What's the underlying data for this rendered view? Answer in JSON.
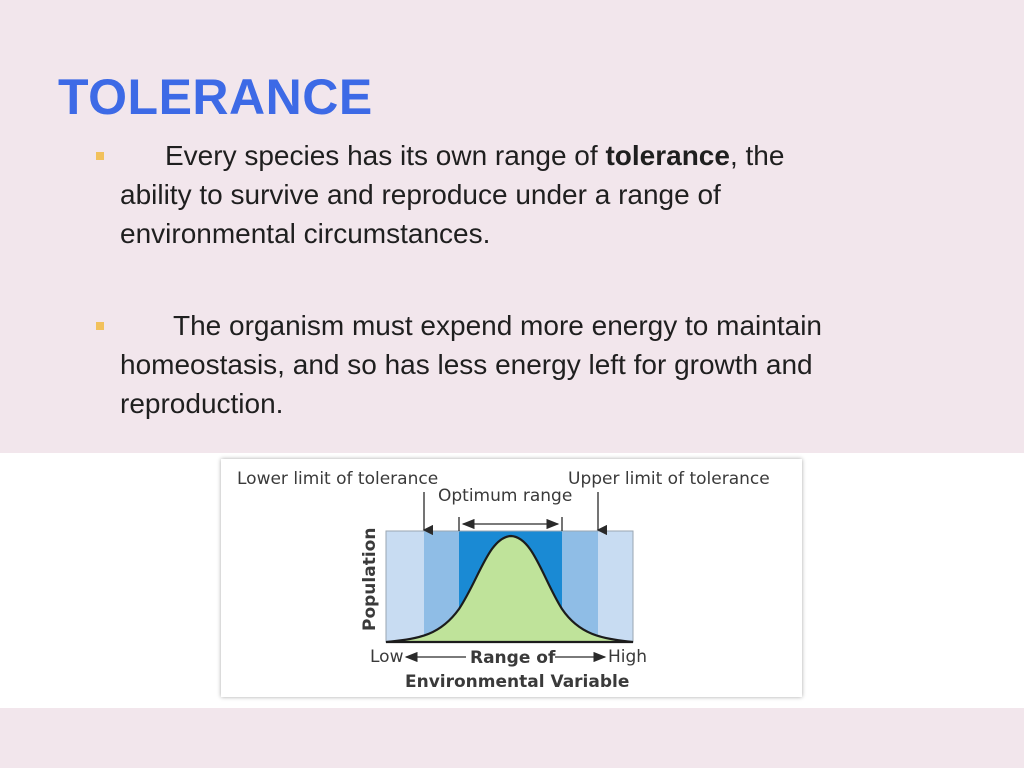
{
  "slide": {
    "title": "TOLERANCE",
    "bullets": [
      {
        "lead": "Every species has its own range of ",
        "bold": "tolerance",
        "rest": ", the ability to survive and reproduce under a range of environmental circumstances."
      },
      {
        "text": "The organism must expend more energy to maintain homeostasis, and so has less energy left for growth and reproduction."
      }
    ],
    "bullet_color": "#f2c15c",
    "title_color": "#3d6ae6"
  },
  "figure": {
    "lower_limit_label": "Lower limit of tolerance",
    "upper_limit_label": "Upper limit of tolerance",
    "optimum_label": "Optimum range",
    "y_axis_label": "Population",
    "x_low_label": "Low",
    "x_high_label": "High",
    "x_axis_line1": "Range of",
    "x_axis_line2": "Environmental Variable",
    "colors": {
      "outer_zone": "#c8dcf2",
      "stress_zone": "#8fbde6",
      "optimum_zone": "#1a8ad4",
      "curve_fill": "#bfe39a"
    }
  }
}
